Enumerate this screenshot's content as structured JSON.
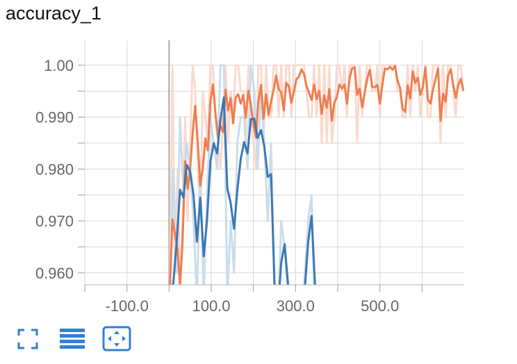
{
  "chart_data": {
    "type": "line",
    "title": "accuracy_1",
    "xlabel": "",
    "ylabel": "",
    "xlim": [
      -200,
      700
    ],
    "ylim": [
      0.9577,
      1.0048
    ],
    "y_ticks": [
      1.0,
      0.99,
      0.98,
      0.97,
      0.96
    ],
    "y_tick_labels": [
      "1.00",
      "0.990",
      "0.980",
      "0.970",
      "0.960"
    ],
    "x_ticks": [
      -100,
      100,
      300,
      500
    ],
    "x_tick_labels": [
      "-100.0",
      "100.0",
      "300.0",
      "500.0"
    ],
    "minor_x_ticks": [
      -200,
      0,
      200,
      400,
      600
    ],
    "minor_y_ticks": [
      0.965,
      0.975,
      0.985,
      0.995
    ],
    "grid": true,
    "series": [
      {
        "color": "#ef7d4f",
        "raw_color": "#fbd9cc",
        "x": [
          2,
          8,
          14,
          20,
          26,
          32,
          38,
          44,
          50,
          56,
          62,
          68,
          74,
          80,
          86,
          92,
          98,
          104,
          110,
          116,
          122,
          128,
          134,
          140,
          146,
          152,
          158,
          164,
          170,
          176,
          182,
          188,
          194,
          200,
          206,
          212,
          218,
          224,
          230,
          236,
          242,
          248,
          254,
          260,
          266,
          272,
          278,
          284,
          290,
          296,
          302,
          308,
          314,
          320,
          326,
          332,
          338,
          344,
          350,
          356,
          362,
          368,
          374,
          380,
          386,
          392,
          398,
          404,
          410,
          416,
          422,
          428,
          434,
          440,
          446,
          452,
          458,
          464,
          470,
          476,
          482,
          488,
          494,
          500,
          506,
          512,
          518,
          524,
          530,
          536,
          542,
          548,
          554,
          560,
          566,
          572,
          578,
          584,
          590,
          596,
          602,
          608,
          614,
          620,
          626,
          632,
          638,
          644,
          650,
          656,
          662,
          668,
          674,
          680,
          686,
          692,
          698
        ],
        "y": [
          0.9575,
          0.9703,
          0.9675,
          0.9646,
          0.9575,
          0.9659,
          0.9815,
          0.9762,
          0.9801,
          0.987,
          0.9922,
          0.9852,
          0.9768,
          0.9802,
          0.9859,
          0.9836,
          0.993,
          0.9963,
          0.9906,
          0.9862,
          0.9883,
          0.9871,
          0.9953,
          0.9913,
          0.9937,
          0.9888,
          0.9938,
          0.9944,
          0.9926,
          0.9943,
          0.9899,
          0.9951,
          0.9924,
          0.9886,
          0.9861,
          0.9932,
          0.9962,
          0.9897,
          0.9944,
          0.9904,
          0.993,
          0.9953,
          0.998,
          0.9954,
          0.9948,
          0.9913,
          0.9966,
          0.996,
          0.9928,
          0.9948,
          0.9973,
          0.9978,
          0.9992,
          0.9983,
          0.996,
          0.9947,
          0.9933,
          0.9963,
          0.9935,
          0.9951,
          0.9906,
          0.9942,
          0.9918,
          0.9954,
          0.9893,
          0.9928,
          0.9938,
          0.9963,
          0.9955,
          0.9963,
          0.9926,
          0.9974,
          0.9994,
          0.9996,
          0.9943,
          0.9955,
          0.9919,
          0.9947,
          0.9974,
          0.9991,
          0.9958,
          0.9958,
          0.9962,
          0.9926,
          0.9963,
          0.9994,
          0.9992,
          0.9997,
          0.9991,
          0.9999,
          0.997,
          0.9956,
          0.9916,
          0.991,
          0.9961,
          0.9936,
          0.9988,
          0.9966,
          0.9976,
          0.9943,
          0.9958,
          0.9996,
          0.9934,
          0.9926,
          0.9953,
          0.9973,
          0.9994,
          0.9893,
          0.9945,
          0.993,
          0.998,
          0.9992,
          0.9963,
          0.9937,
          0.9962,
          0.9974,
          0.9951
        ],
        "raw_y": [
          0.958,
          1.0,
          0.96,
          0.98,
          0.958,
          0.97,
          0.99,
          0.97,
          0.985,
          1.0,
          0.995,
          0.98,
          0.97,
          0.995,
          0.99,
          0.985,
          1.0,
          1.0,
          0.99,
          0.985,
          0.98,
          0.99,
          1.0,
          0.985,
          0.995,
          0.99,
          1.0,
          1.0,
          0.995,
          0.995,
          0.985,
          1.0,
          0.99,
          0.985,
          0.98,
          1.0,
          1.0,
          0.985,
          1.0,
          0.99,
          0.99,
          1.0,
          1.0,
          0.99,
          1.0,
          0.99,
          1.0,
          1.0,
          0.99,
          1.0,
          1.0,
          1.0,
          1.0,
          1.0,
          0.995,
          0.99,
          0.99,
          1.0,
          0.99,
          1.0,
          0.985,
          1.0,
          0.985,
          1.0,
          0.985,
          0.99,
          1.0,
          1.0,
          0.995,
          1.0,
          0.99,
          1.0,
          1.0,
          1.0,
          0.985,
          1.0,
          0.99,
          0.995,
          1.0,
          1.0,
          0.995,
          0.995,
          1.0,
          0.99,
          1.0,
          1.0,
          1.0,
          1.0,
          1.0,
          1.0,
          0.995,
          0.995,
          0.99,
          0.99,
          1.0,
          0.99,
          1.0,
          0.995,
          1.0,
          0.99,
          0.995,
          1.0,
          0.99,
          0.99,
          1.0,
          1.0,
          1.0,
          0.985,
          1.0,
          0.99,
          1.0,
          1.0,
          0.995,
          0.99,
          1.0,
          1.0,
          0.995
        ]
      },
      {
        "color": "#3a78b5",
        "raw_color": "#c9dcec",
        "x": [
          2,
          10,
          18,
          26,
          34,
          42,
          50,
          58,
          66,
          74,
          82,
          90,
          98,
          106,
          114,
          122,
          130,
          138,
          146,
          154,
          162,
          170,
          178,
          186,
          194,
          202,
          210,
          218,
          226,
          234,
          242,
          250,
          258,
          266,
          274,
          282,
          290,
          298,
          306,
          314,
          322,
          330,
          338,
          346,
          354,
          362,
          370,
          378,
          386,
          394,
          402,
          410
        ],
        "y": [
          0.956,
          0.958,
          0.966,
          0.976,
          0.9745,
          0.9808,
          0.9795,
          0.975,
          0.966,
          0.9745,
          0.9632,
          0.97,
          0.9815,
          0.985,
          0.983,
          0.9895,
          0.9938,
          0.9763,
          0.9735,
          0.9685,
          0.976,
          0.982,
          0.9852,
          0.983,
          0.9896,
          0.9897,
          0.986,
          0.9875,
          0.9843,
          0.9785,
          0.979,
          0.958,
          0.953,
          0.962,
          0.9655,
          0.958,
          0.952,
          0.954,
          0.951,
          0.953,
          0.957,
          0.966,
          0.971,
          0.958,
          0.955,
          0.952,
          0.951,
          0.954,
          0.952,
          0.953,
          0.955,
          0.956
        ],
        "raw_y": [
          0.955,
          0.98,
          0.96,
          0.99,
          0.975,
          0.985,
          0.98,
          0.97,
          0.955,
          0.98,
          0.955,
          0.975,
          0.99,
          0.985,
          0.98,
          1.0,
          1.0,
          0.955,
          0.97,
          0.96,
          0.985,
          0.99,
          0.99,
          0.98,
          1.0,
          0.995,
          0.98,
          0.995,
          0.985,
          0.97,
          0.985,
          0.955,
          0.95,
          0.97,
          0.965,
          0.955,
          0.95,
          0.955,
          0.95,
          0.95,
          0.96,
          0.97,
          0.975,
          0.95,
          0.955,
          0.95,
          0.95,
          0.955,
          0.95,
          0.95,
          0.955,
          0.955
        ]
      }
    ]
  },
  "toolbar": {
    "fullscreen_icon": "fullscreen-icon",
    "data_table_icon": "data-table-icon",
    "fit_domain_icon": "fit-domain-icon",
    "accent_color": "#2f7fd9"
  }
}
